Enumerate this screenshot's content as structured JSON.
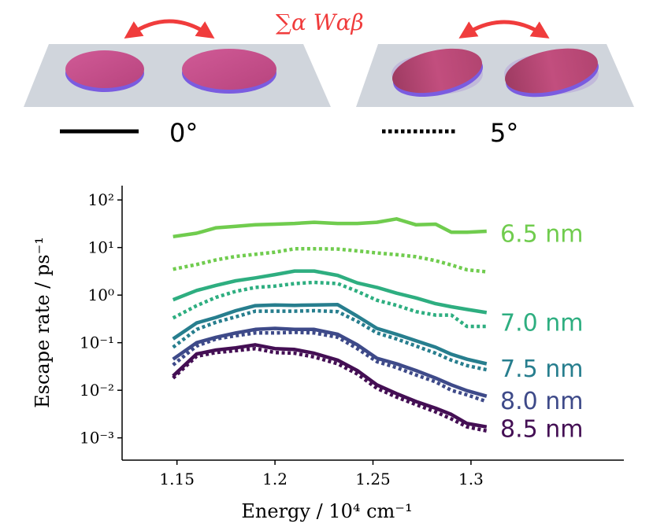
{
  "schematic": {
    "coupling_label": "∑α Wαβ",
    "legend": [
      {
        "name": "solid",
        "label": "0°"
      },
      {
        "name": "dotted",
        "label": "5°"
      }
    ],
    "colors": {
      "arrow": "#f03c3c",
      "disc_top": "#c2508a",
      "disc_side": "#7a5ce0",
      "substrate": "#d0d5dc"
    }
  },
  "chart_data": {
    "type": "line",
    "xlabel": "Energy / 10⁴ cm⁻¹",
    "ylabel": "Escape rate / ps⁻¹",
    "yscale": "log",
    "xlim": [
      1.122,
      1.378
    ],
    "ylim": [
      0.00034,
      200
    ],
    "x_ticks": [
      1.15,
      1.2,
      1.25,
      1.3
    ],
    "x_tick_labels": [
      "1.15",
      "1.2",
      "1.25",
      "1.3"
    ],
    "y_ticks": [
      0.001,
      0.01,
      0.1,
      1,
      10,
      100
    ],
    "y_tick_labels": [
      "10⁻³",
      "10⁻²",
      "10⁻¹",
      "10⁰",
      "10¹",
      "10²"
    ],
    "x": [
      1.148,
      1.16,
      1.17,
      1.18,
      1.19,
      1.2,
      1.21,
      1.22,
      1.232,
      1.242,
      1.252,
      1.262,
      1.272,
      1.282,
      1.29,
      1.298,
      1.308
    ],
    "series": [
      {
        "name": "6.5 nm",
        "angle": "0°",
        "color": "#70cc4e",
        "values": [
          17,
          20,
          26,
          28,
          30,
          31,
          32,
          34,
          32,
          32,
          34,
          40,
          30,
          31,
          21,
          21,
          22
        ]
      },
      {
        "name": "6.5 nm",
        "angle": "5°",
        "color": "#70cc4e",
        "values": [
          3.5,
          4.4,
          5.5,
          6.5,
          7.2,
          8,
          9.4,
          9.4,
          9.3,
          8.5,
          7.7,
          7.1,
          6.4,
          5.3,
          4.3,
          3.4,
          3.1
        ]
      },
      {
        "name": "7.0 nm",
        "angle": "0°",
        "color": "#2eae80",
        "values": [
          0.8,
          1.25,
          1.6,
          2.0,
          2.3,
          2.7,
          3.2,
          3.2,
          2.6,
          1.8,
          1.45,
          1.1,
          0.87,
          0.66,
          0.57,
          0.5,
          0.43
        ]
      },
      {
        "name": "7.0 nm",
        "angle": "5°",
        "color": "#2eae80",
        "values": [
          0.33,
          0.6,
          0.9,
          1.2,
          1.45,
          1.55,
          1.75,
          1.85,
          1.75,
          1.2,
          0.78,
          0.61,
          0.45,
          0.38,
          0.38,
          0.22,
          0.22
        ]
      },
      {
        "name": "7.5 nm",
        "angle": "0°",
        "color": "#277e8e",
        "values": [
          0.12,
          0.26,
          0.34,
          0.47,
          0.6,
          0.62,
          0.61,
          0.62,
          0.63,
          0.36,
          0.2,
          0.15,
          0.11,
          0.08,
          0.057,
          0.045,
          0.036
        ]
      },
      {
        "name": "7.5 nm",
        "angle": "5°",
        "color": "#277e8e",
        "values": [
          0.08,
          0.19,
          0.27,
          0.35,
          0.46,
          0.46,
          0.46,
          0.47,
          0.45,
          0.28,
          0.16,
          0.12,
          0.085,
          0.06,
          0.043,
          0.033,
          0.027
        ]
      },
      {
        "name": "8.0 nm",
        "angle": "0°",
        "color": "#3e4a89",
        "values": [
          0.045,
          0.1,
          0.13,
          0.16,
          0.19,
          0.2,
          0.19,
          0.19,
          0.15,
          0.09,
          0.047,
          0.036,
          0.026,
          0.018,
          0.013,
          0.0098,
          0.0075
        ]
      },
      {
        "name": "8.0 nm",
        "angle": "5°",
        "color": "#3e4a89",
        "values": [
          0.034,
          0.085,
          0.12,
          0.14,
          0.16,
          0.16,
          0.165,
          0.16,
          0.13,
          0.075,
          0.04,
          0.03,
          0.021,
          0.015,
          0.01,
          0.008,
          0.0058
        ]
      },
      {
        "name": "8.5 nm",
        "angle": "0°",
        "color": "#440f54",
        "values": [
          0.02,
          0.058,
          0.07,
          0.078,
          0.09,
          0.075,
          0.072,
          0.06,
          0.043,
          0.026,
          0.013,
          0.0085,
          0.0058,
          0.0042,
          0.0031,
          0.002,
          0.0017
        ]
      },
      {
        "name": "8.5 nm",
        "angle": "5°",
        "color": "#440f54",
        "values": [
          0.018,
          0.052,
          0.062,
          0.068,
          0.075,
          0.062,
          0.06,
          0.05,
          0.036,
          0.022,
          0.011,
          0.0072,
          0.005,
          0.0035,
          0.0025,
          0.0017,
          0.0014
        ]
      }
    ],
    "series_labels": [
      {
        "text": "6.5 nm",
        "color": "#70cc4e",
        "anchor_value": 20
      },
      {
        "text": "7.0 nm",
        "color": "#2eae80",
        "anchor_value": 0.27
      },
      {
        "text": "7.5 nm",
        "color": "#277e8e",
        "anchor_value": 0.029
      },
      {
        "text": "8.0 nm",
        "color": "#3e4a89",
        "anchor_value": 0.0061
      },
      {
        "text": "8.5 nm",
        "color": "#440f54",
        "anchor_value": 0.0016
      }
    ]
  }
}
